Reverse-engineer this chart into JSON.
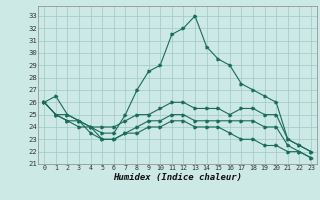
{
  "xlabel": "Humidex (Indice chaleur)",
  "xlim": [
    -0.5,
    23.5
  ],
  "ylim": [
    21,
    33.8
  ],
  "yticks": [
    21,
    22,
    23,
    24,
    25,
    26,
    27,
    28,
    29,
    30,
    31,
    32,
    33
  ],
  "xticks": [
    0,
    1,
    2,
    3,
    4,
    5,
    6,
    7,
    8,
    9,
    10,
    11,
    12,
    13,
    14,
    15,
    16,
    17,
    18,
    19,
    20,
    21,
    22,
    23
  ],
  "bg_color": "#cce9e5",
  "line_color": "#1a6b5a",
  "grid_color": "#a0c8c4",
  "lines": [
    [
      26.0,
      26.5,
      25.0,
      24.5,
      24.0,
      23.5,
      23.5,
      25.0,
      27.0,
      28.5,
      29.0,
      31.5,
      32.0,
      33.0,
      30.5,
      29.5,
      29.0,
      27.5,
      27.0,
      26.5,
      26.0,
      23.0,
      22.5,
      22.0
    ],
    [
      26.0,
      25.0,
      25.0,
      24.5,
      24.0,
      24.0,
      24.0,
      24.5,
      25.0,
      25.0,
      25.5,
      26.0,
      26.0,
      25.5,
      25.5,
      25.5,
      25.0,
      25.5,
      25.5,
      25.0,
      25.0,
      23.0,
      22.5,
      22.0
    ],
    [
      26.0,
      25.0,
      24.5,
      24.5,
      23.5,
      23.0,
      23.0,
      23.5,
      24.0,
      24.5,
      24.5,
      25.0,
      25.0,
      24.5,
      24.5,
      24.5,
      24.5,
      24.5,
      24.5,
      24.0,
      24.0,
      22.5,
      22.0,
      21.5
    ],
    [
      26.0,
      25.0,
      24.5,
      24.0,
      24.0,
      23.0,
      23.0,
      23.5,
      23.5,
      24.0,
      24.0,
      24.5,
      24.5,
      24.0,
      24.0,
      24.0,
      23.5,
      23.0,
      23.0,
      22.5,
      22.5,
      22.0,
      22.0,
      21.5
    ]
  ]
}
